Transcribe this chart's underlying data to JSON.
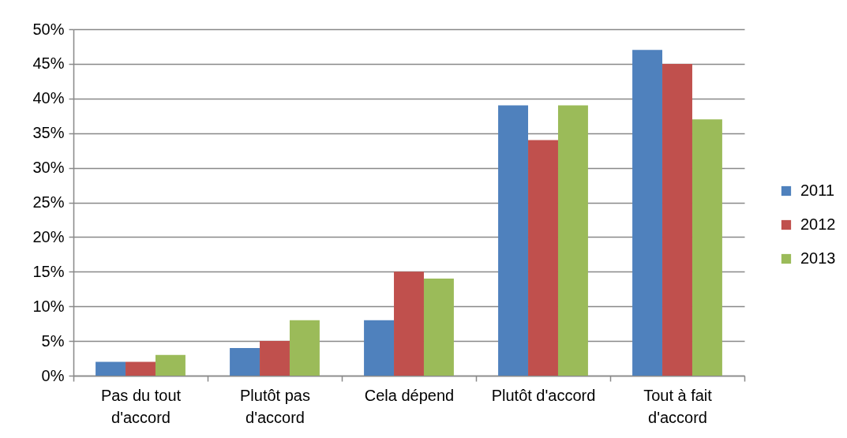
{
  "chart_data": {
    "type": "bar",
    "categories": [
      "Pas du tout d'accord",
      "Plutôt pas d'accord",
      "Cela dépend",
      "Plutôt d'accord",
      "Tout à fait d'accord"
    ],
    "series": [
      {
        "name": "2011",
        "color": "#4f81bd",
        "values": [
          2,
          4,
          8,
          39,
          47
        ]
      },
      {
        "name": "2012",
        "color": "#c0504d",
        "values": [
          2,
          5,
          15,
          34,
          45
        ]
      },
      {
        "name": "2013",
        "color": "#9bbb59",
        "values": [
          3,
          8,
          14,
          39,
          37
        ]
      }
    ],
    "ylim": [
      0,
      50
    ],
    "yticks": [
      {
        "value": 0,
        "label": "0%"
      },
      {
        "value": 5,
        "label": "5%"
      },
      {
        "value": 10,
        "label": "10%"
      },
      {
        "value": 15,
        "label": "15%"
      },
      {
        "value": 20,
        "label": "20%"
      },
      {
        "value": 25,
        "label": "25%"
      },
      {
        "value": 30,
        "label": "30%"
      },
      {
        "value": 35,
        "label": "35%"
      },
      {
        "value": 40,
        "label": "40%"
      },
      {
        "value": 45,
        "label": "45%"
      },
      {
        "value": 50,
        "label": "50%"
      }
    ],
    "grid": "y",
    "legend": "right"
  }
}
